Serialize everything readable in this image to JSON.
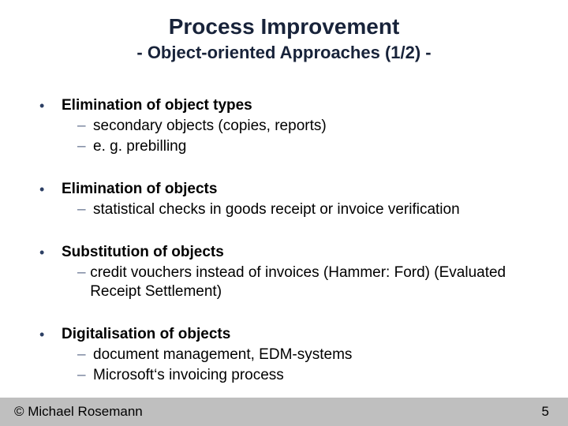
{
  "title": {
    "main": "Process Improvement",
    "sub": "- Object-oriented Approaches (1/2) -"
  },
  "colors": {
    "title_color": "#18233a",
    "bullet_color": "#2c3f64",
    "dash_color": "#6c7a94",
    "text_color": "#000000",
    "footer_bg": "#bfbfbf",
    "background": "#ffffff"
  },
  "fonts": {
    "family": "Arial",
    "title_main_pt": 28,
    "title_sub_pt": 22,
    "body_pt": 19,
    "footer_pt": 17
  },
  "bullets": [
    {
      "heading": "Elimination of object types",
      "subs": [
        "secondary objects (copies, reports)",
        "e. g. prebilling"
      ]
    },
    {
      "heading": "Elimination of objects",
      "subs": [
        "statistical checks in goods receipt or invoice verification"
      ]
    },
    {
      "heading": "Substitution of objects",
      "subs": [
        "credit vouchers instead of invoices (Hammer: Ford) (Evaluated Receipt Settlement)"
      ]
    },
    {
      "heading": "Digitalisation of objects",
      "subs": [
        "document management, EDM-systems",
        "Microsoft‘s invoicing process"
      ]
    }
  ],
  "footer": {
    "copyright": "© Michael Rosemann",
    "page": "5"
  }
}
